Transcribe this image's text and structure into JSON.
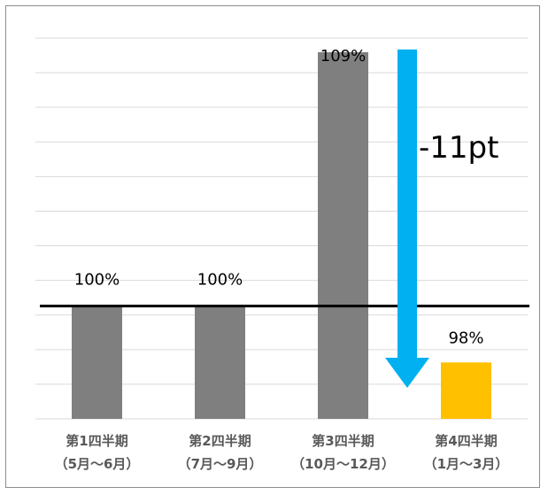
{
  "chart_data": {
    "type": "bar",
    "categories": [
      {
        "line1": "第1四半期",
        "line2": "（5月～6月）"
      },
      {
        "line1": "第2四半期",
        "line2": "（7月～9月）"
      },
      {
        "line1": "第3四半期",
        "line2": "（10月～12月）"
      },
      {
        "line1": "第4四半期",
        "line2": "（1月～3月）"
      }
    ],
    "values": [
      100,
      100,
      109,
      98
    ],
    "data_labels": [
      "100%",
      "100%",
      "109%",
      "98%"
    ],
    "bar_colors": [
      "#7f7f7f",
      "#7f7f7f",
      "#7f7f7f",
      "#ffc000"
    ],
    "reference_line": 100,
    "ylim": [
      96,
      109.5
    ],
    "grid": true,
    "annotation": {
      "text": "-11pt",
      "arrow_color": "#00b0f0",
      "arrow_direction": "down"
    }
  }
}
